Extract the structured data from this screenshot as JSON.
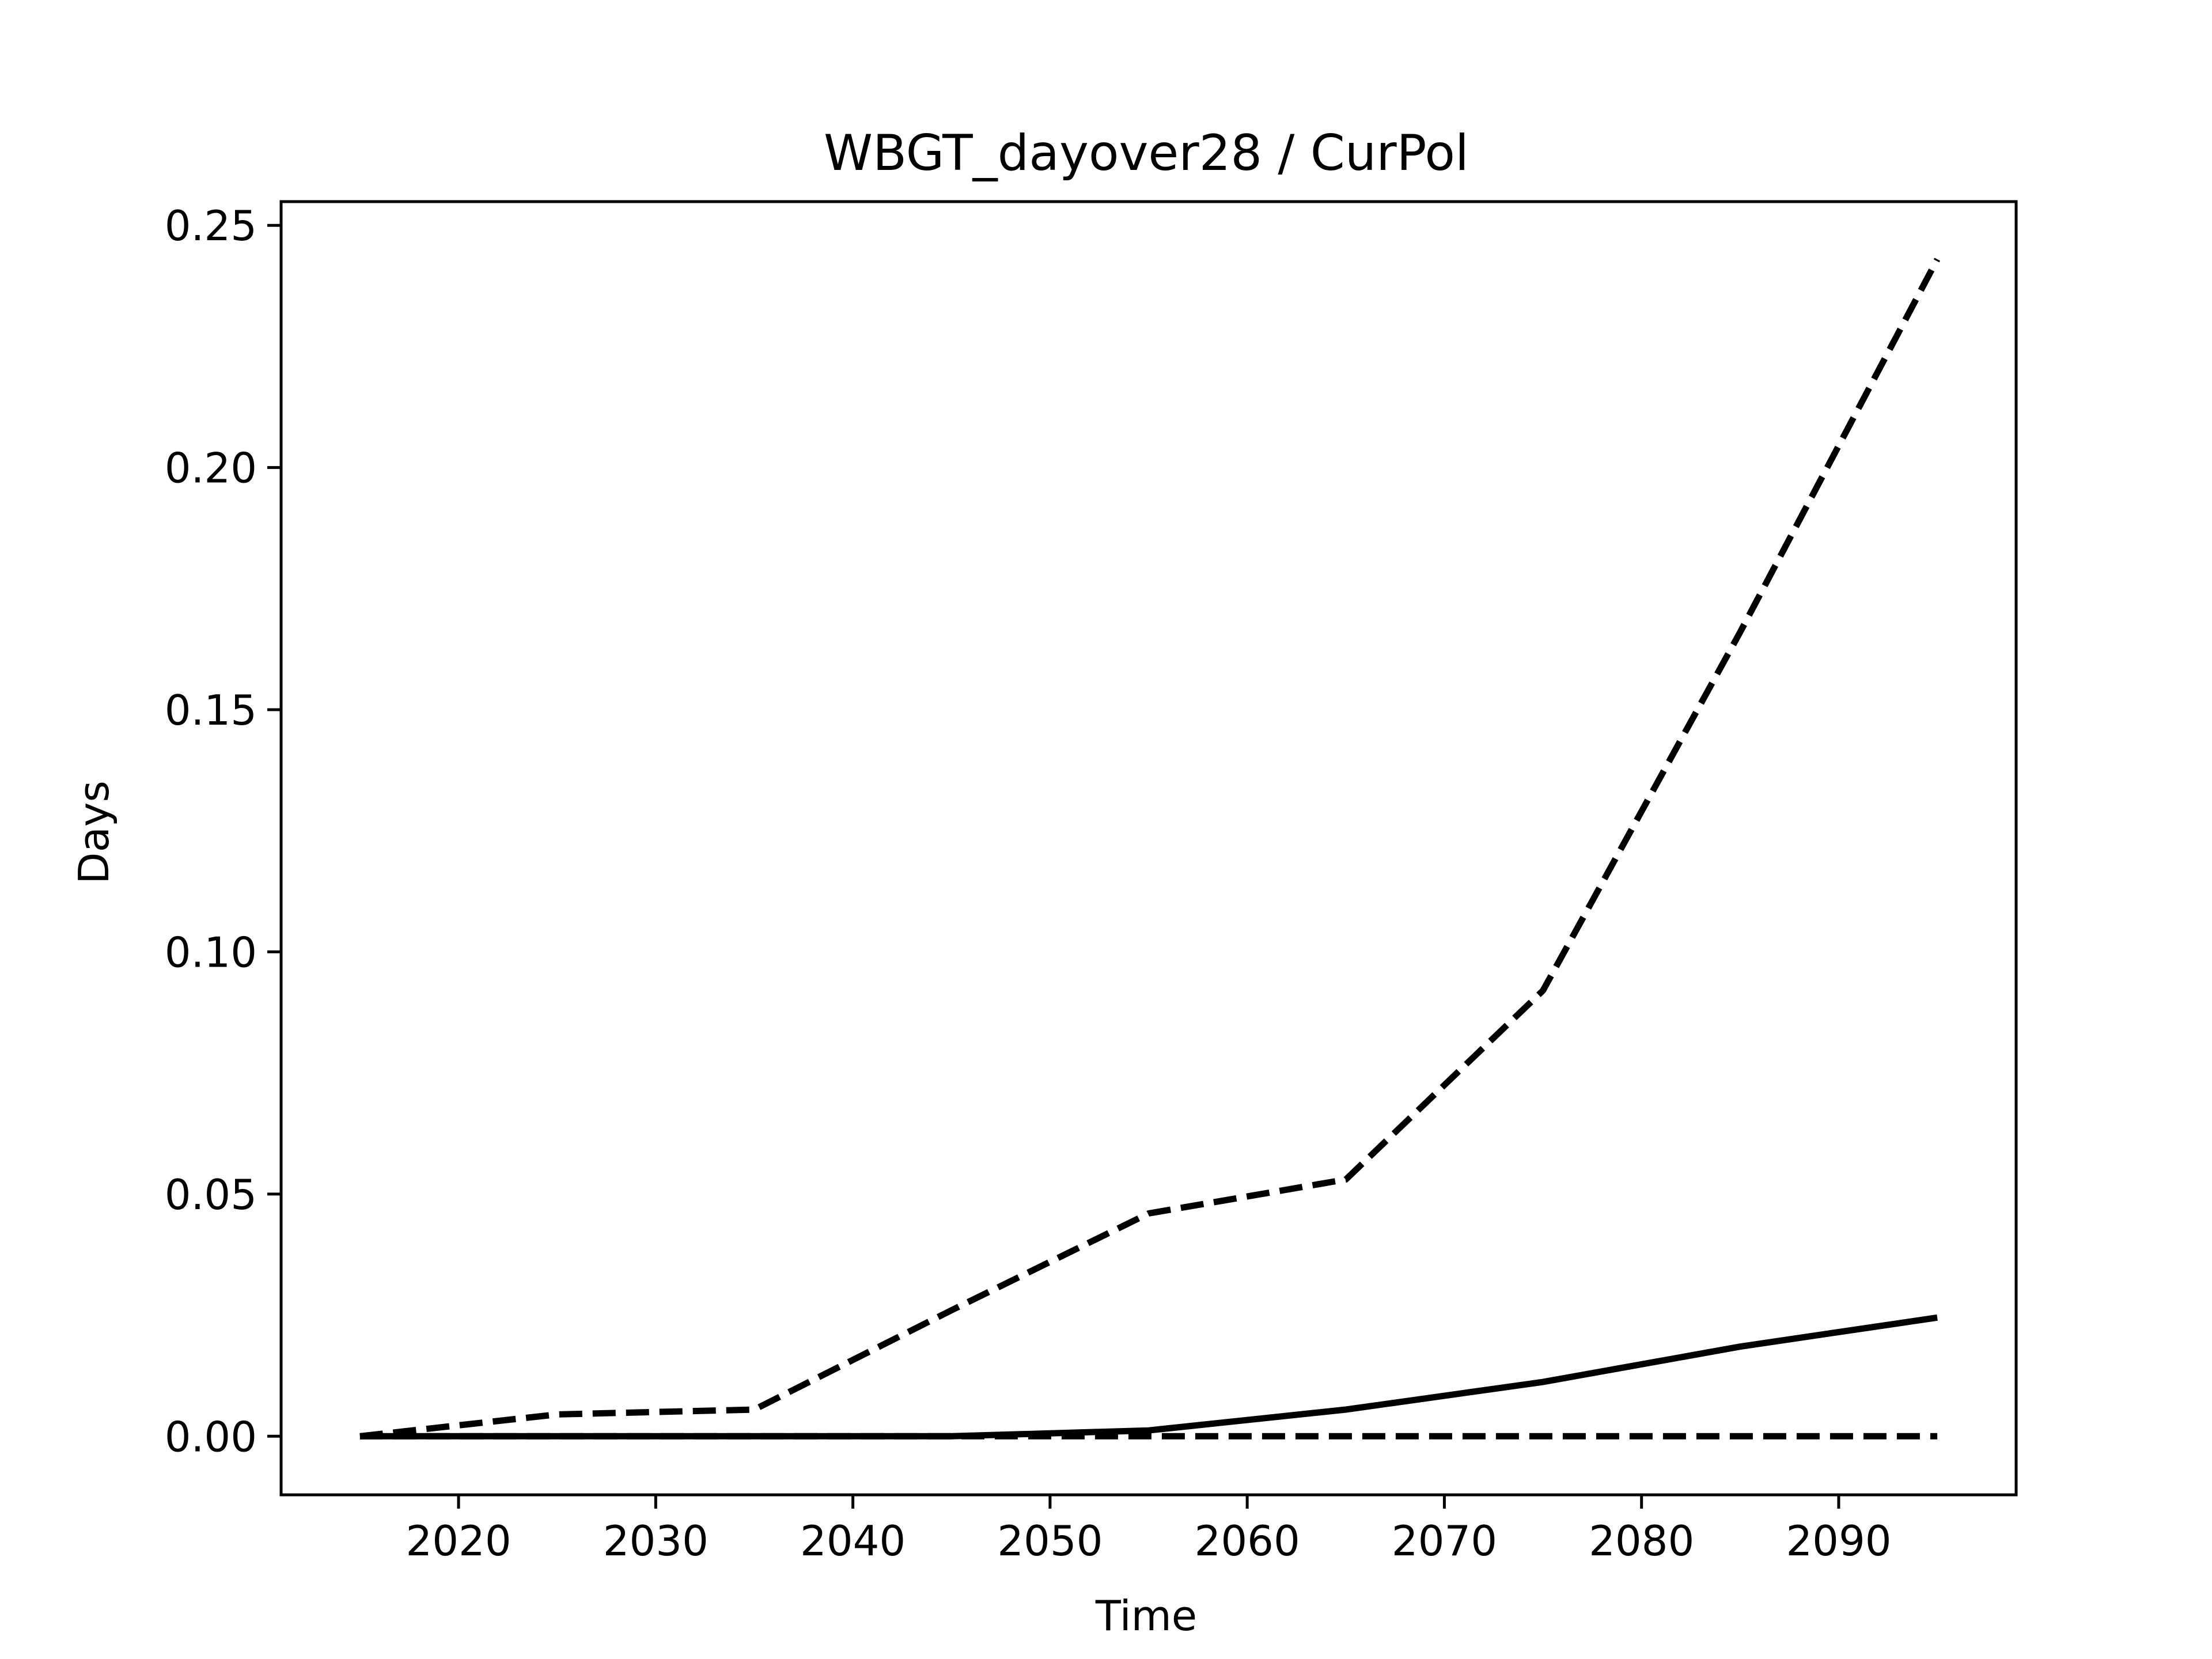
{
  "chart_data": {
    "type": "line",
    "title": "WBGT_dayover28 / CurPol",
    "xlabel": "Time",
    "ylabel": "Days",
    "xlim": [
      2011,
      2099
    ],
    "ylim": [
      -0.0121,
      0.2549
    ],
    "x_ticks": [
      "2020",
      "2030",
      "2040",
      "2050",
      "2060",
      "2070",
      "2080",
      "2090"
    ],
    "y_ticks": [
      "0.00",
      "0.05",
      "0.10",
      "0.15",
      "0.20",
      "0.25"
    ],
    "x": [
      2015,
      2025,
      2035,
      2045,
      2055,
      2065,
      2075,
      2085,
      2095
    ],
    "grid": false,
    "legend": "none",
    "series": [
      {
        "style": "dashed",
        "color": "#000000",
        "values": [
          0.0,
          0.0045,
          0.0055,
          0.026,
          0.046,
          0.053,
          0.092,
          0.166,
          0.243
        ]
      },
      {
        "style": "solid",
        "color": "#000000",
        "values": [
          0.0,
          0.0,
          0.0,
          0.0,
          0.0012,
          0.0055,
          0.0112,
          0.0185,
          0.0245
        ]
      },
      {
        "style": "dashed",
        "color": "#000000",
        "values": [
          0.0,
          0.0,
          0.0,
          0.0,
          0.0,
          0.0,
          0.0,
          0.0,
          0.0
        ]
      }
    ]
  }
}
